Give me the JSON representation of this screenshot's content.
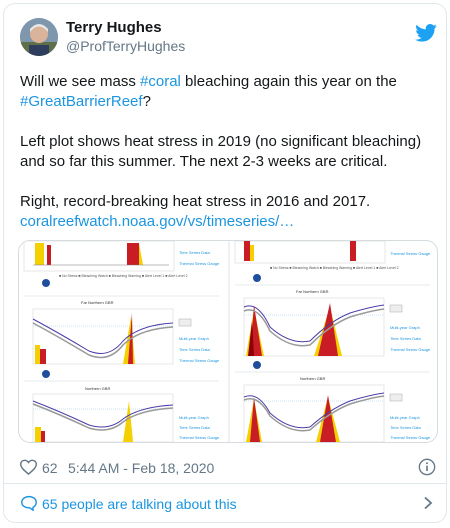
{
  "author": {
    "name": "Terry Hughes",
    "handle": "@ProfTerryHughes"
  },
  "tweet": {
    "line1_pre": "Will we see mass ",
    "hashtag_coral": "#coral",
    "line1_post": " bleaching again this year on the",
    "hashtag_gbr": "#GreatBarrierReef",
    "line1_end": "?",
    "para2": "Left plot shows heat stress in 2019 (no significant bleaching) and so far this summer. The next 2-3 weeks are critical.",
    "para3": "Right,  record-breaking heat stress in 2016 and 2017.",
    "link": "coralreefwatch.noaa.gov/vs/timeseries/…"
  },
  "media": {
    "left_titles": [
      "Far Northern GBR",
      "Northern GBR"
    ],
    "right_titles": [
      "Far Northern GBR",
      "Northern GBR"
    ],
    "colors": {
      "bleaching": "#c81d25",
      "watch": "#f5d000",
      "temp": "#4b3ca8"
    }
  },
  "footer": {
    "likes": "62",
    "timestamp": "5:44 AM - Feb 18, 2020",
    "talking": "65 people are talking about this"
  },
  "icons": {
    "platform": "twitter-bird-icon",
    "like": "heart-icon",
    "info": "info-icon",
    "reply": "speech-bubble-icon",
    "more": "chevron-right-icon"
  }
}
